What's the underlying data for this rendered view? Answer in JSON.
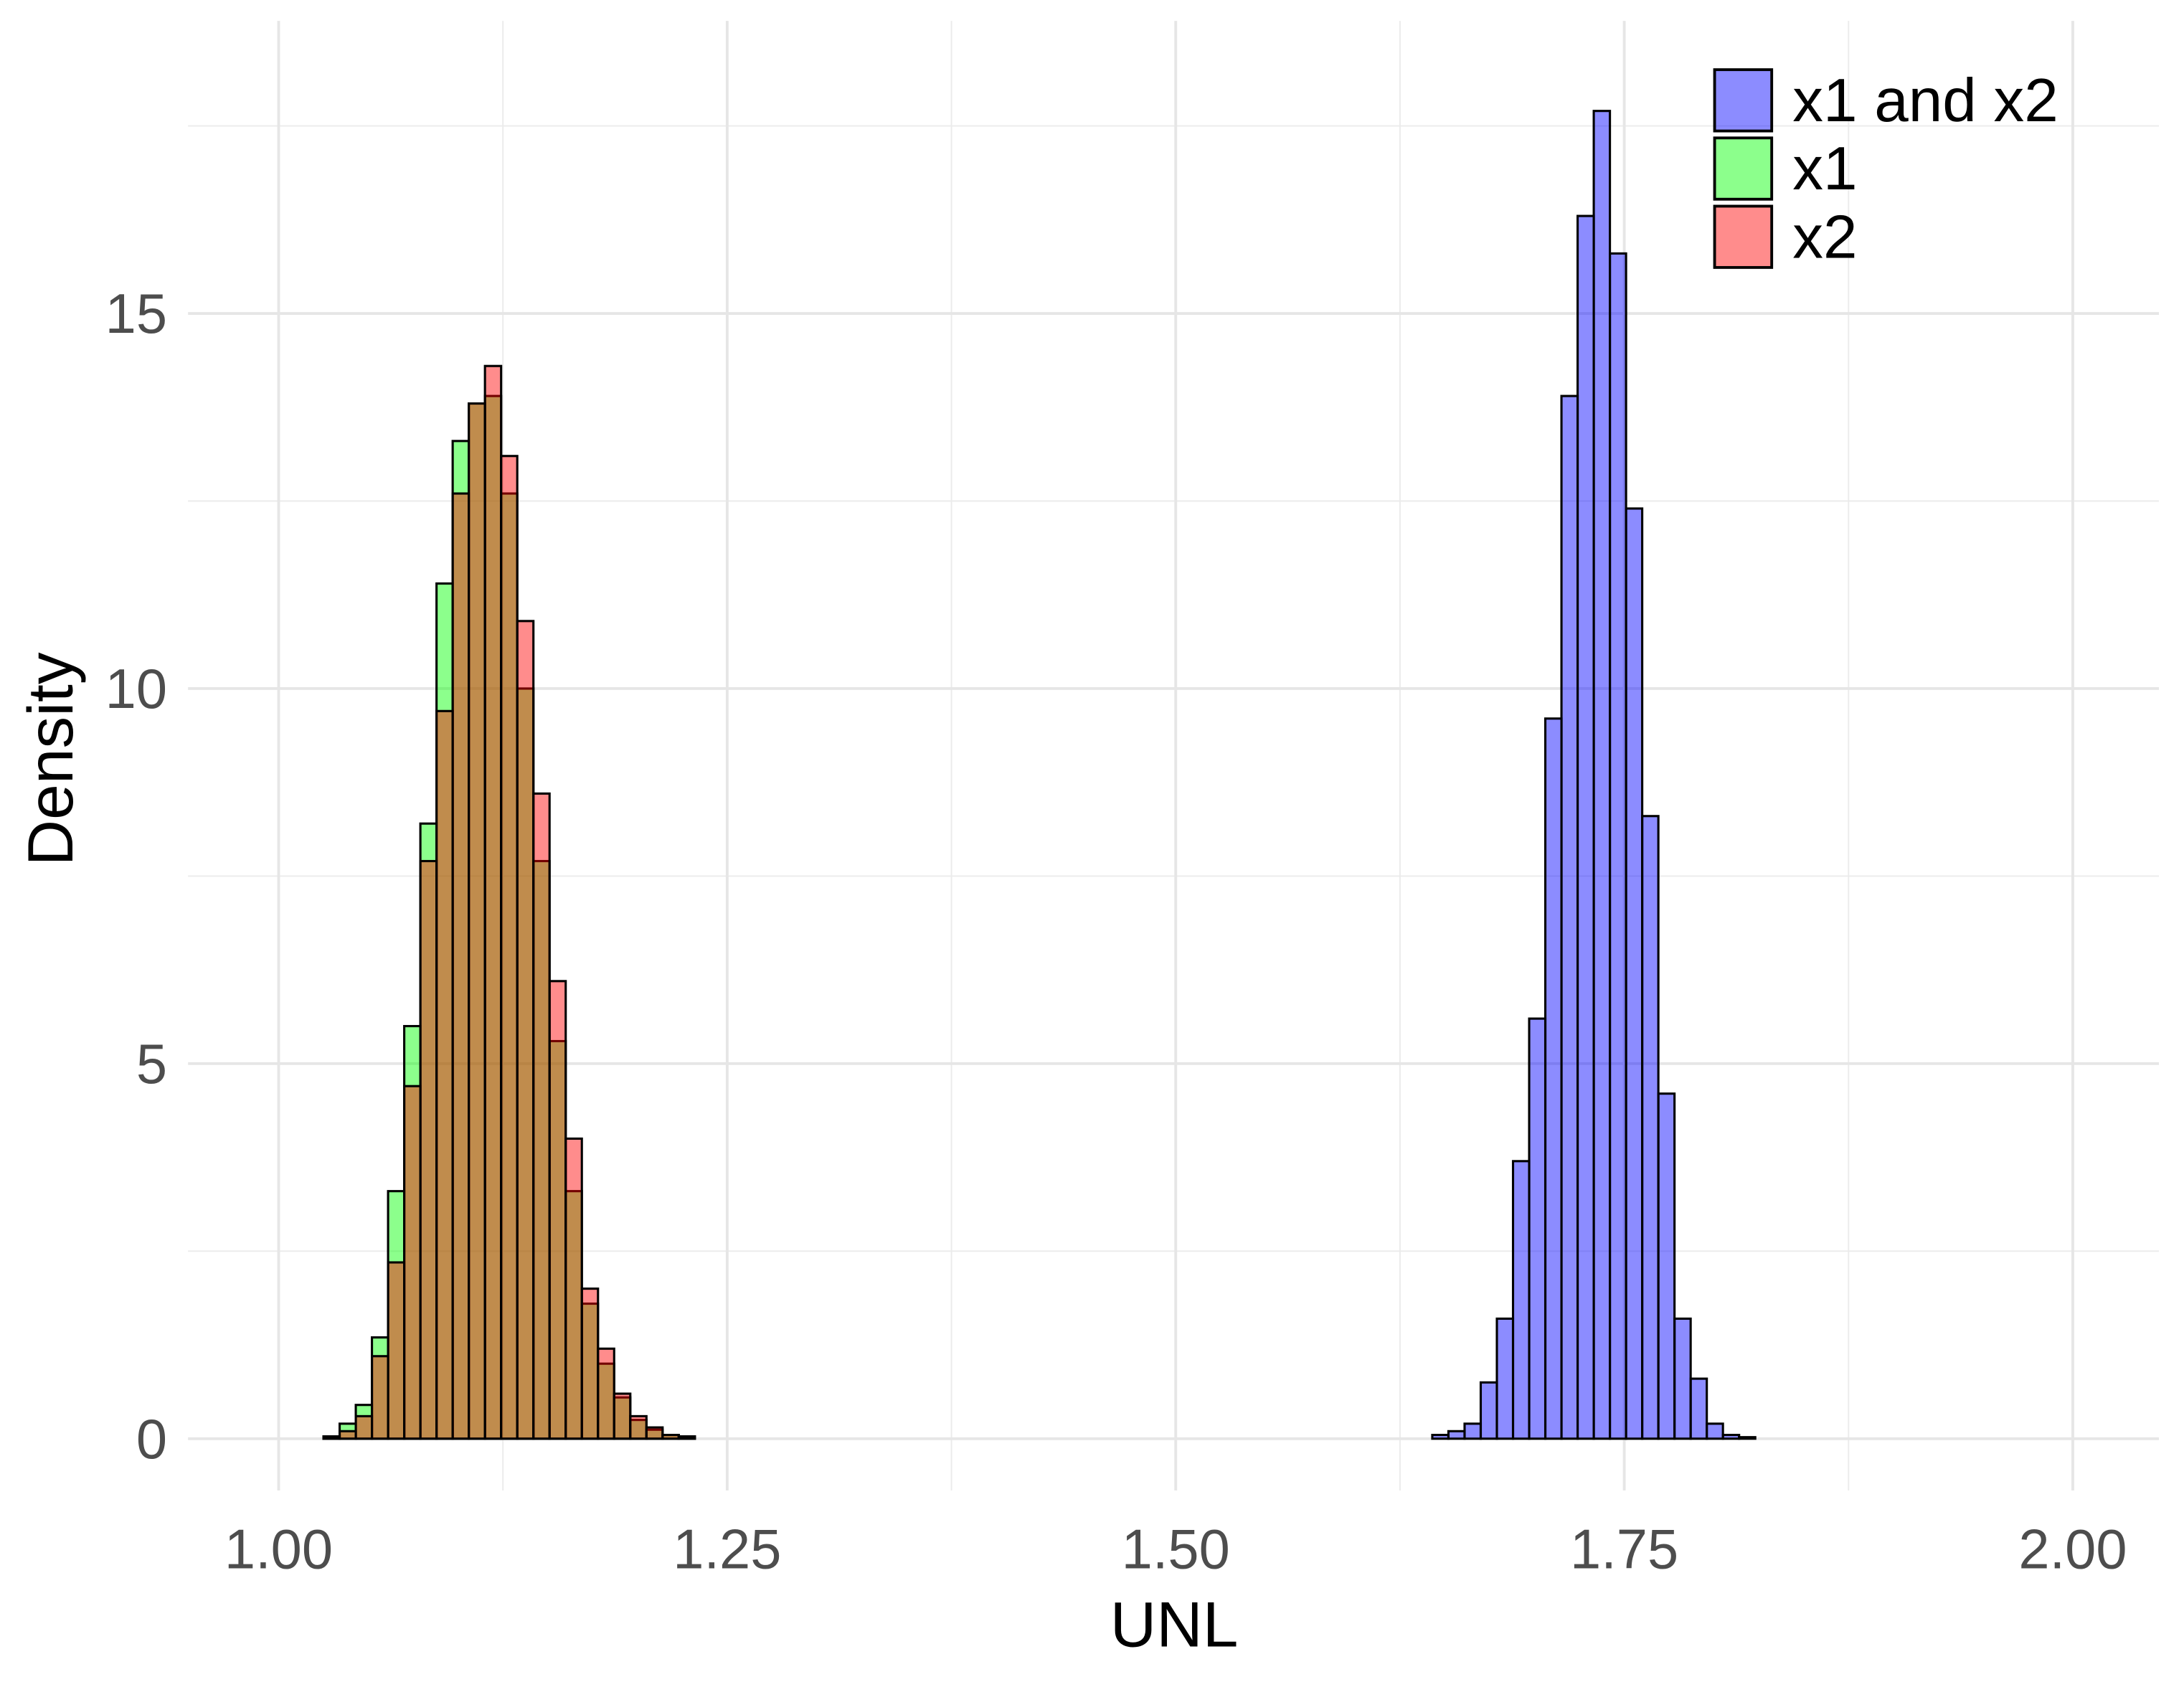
{
  "chart_data": {
    "type": "histogram",
    "x_label": "UNL",
    "y_label": "Density",
    "xlim": [
      0.9495,
      2.048
    ],
    "ylim": [
      -0.69,
      18.9
    ],
    "xticks": [
      {
        "value": 1,
        "label": "1.00"
      },
      {
        "value": 1.25,
        "label": "1.25"
      },
      {
        "value": 1.5,
        "label": "1.50"
      },
      1.75,
      {
        "value": 2,
        "label": "2.00"
      }
    ],
    "yticks": [
      0,
      5,
      10,
      15
    ],
    "x_minor_grid": [
      1.125,
      1.375,
      1.625,
      1.875
    ],
    "y_minor_grid": [
      2.5,
      7.5,
      12.5,
      17.5
    ],
    "grid": true,
    "legend_position": "top-right",
    "fill_opacity": 0.45,
    "edge_color": "#000000",
    "series": [
      {
        "name": "x1 and x2",
        "color": "#0000ff",
        "bins": [
          1.643,
          1.652,
          1.661,
          1.67,
          1.679,
          1.688,
          1.697,
          1.706,
          1.715,
          1.724,
          1.733,
          1.742,
          1.751,
          1.76,
          1.769,
          1.778,
          1.787,
          1.796,
          1.805,
          1.814,
          1.823
        ],
        "values": [
          0.05,
          0.1,
          0.2,
          0.75,
          1.6,
          3.7,
          5.6,
          9.6,
          13.9,
          16.3,
          17.7,
          15.8,
          12.4,
          8.3,
          4.6,
          1.6,
          0.8,
          0.2,
          0.05,
          0.02
        ]
      },
      {
        "name": "x1",
        "color": "#00ff00",
        "bins": [
          1.025,
          1.034,
          1.043,
          1.052,
          1.061,
          1.07,
          1.079,
          1.088,
          1.097,
          1.106,
          1.115,
          1.124,
          1.133,
          1.142,
          1.151,
          1.16,
          1.169,
          1.178,
          1.187,
          1.196,
          1.205,
          1.214,
          1.223,
          1.232
        ],
        "values": [
          0.03,
          0.2,
          0.45,
          1.35,
          3.3,
          5.5,
          8.2,
          11.4,
          13.3,
          13.8,
          13.9,
          12.6,
          10.0,
          7.7,
          5.3,
          3.3,
          1.8,
          1.0,
          0.55,
          0.25,
          0.12,
          0.05,
          0.03
        ]
      },
      {
        "name": "x2",
        "color": "#ff0000",
        "bins": [
          1.025,
          1.034,
          1.043,
          1.052,
          1.061,
          1.07,
          1.079,
          1.088,
          1.097,
          1.106,
          1.115,
          1.124,
          1.133,
          1.142,
          1.151,
          1.16,
          1.169,
          1.178,
          1.187,
          1.196,
          1.205,
          1.214,
          1.223,
          1.232
        ],
        "values": [
          0.03,
          0.1,
          0.3,
          1.1,
          2.35,
          4.7,
          7.7,
          9.7,
          12.6,
          13.8,
          14.3,
          13.1,
          10.9,
          8.6,
          6.1,
          4.0,
          2.0,
          1.2,
          0.6,
          0.3,
          0.15,
          0.05,
          0.03
        ]
      }
    ]
  }
}
